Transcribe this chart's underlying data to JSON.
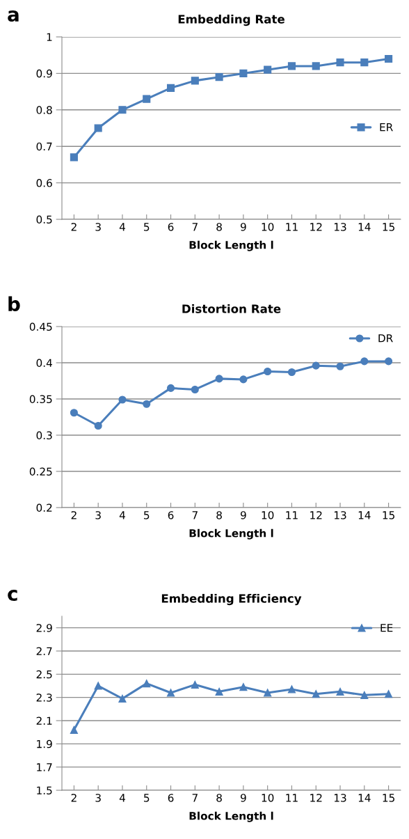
{
  "chart_data": [
    {
      "type": "line",
      "title": "Embedding Rate",
      "xlabel": "Block Length l",
      "annotations": [
        "a"
      ],
      "categories": [
        "2",
        "3",
        "4",
        "5",
        "6",
        "7",
        "8",
        "9",
        "10",
        "11",
        "12",
        "13",
        "14",
        "15"
      ],
      "series": [
        {
          "name": "ER",
          "color": "#4a7ebb",
          "values": [
            0.67,
            0.75,
            0.8,
            0.83,
            0.86,
            0.88,
            0.89,
            0.9,
            0.91,
            0.92,
            0.92,
            0.93,
            0.93,
            0.94
          ]
        }
      ],
      "ylim": [
        0.5,
        1
      ],
      "yticks": [
        0.5,
        0.6,
        0.7,
        0.8,
        0.9,
        1
      ],
      "grid": "y",
      "legend": "right",
      "marker": "square",
      "line_style": "solid"
    },
    {
      "type": "line",
      "title": "Distortion Rate",
      "xlabel": "Block Length l",
      "annotations": [
        "b"
      ],
      "categories": [
        "2",
        "3",
        "4",
        "5",
        "6",
        "7",
        "8",
        "9",
        "10",
        "11",
        "12",
        "13",
        "14",
        "15"
      ],
      "series": [
        {
          "name": "DR",
          "color": "#4a7ebb",
          "values": [
            0.331,
            0.313,
            0.349,
            0.343,
            0.365,
            0.363,
            0.378,
            0.377,
            0.388,
            0.387,
            0.396,
            0.395,
            0.402,
            0.402
          ]
        }
      ],
      "ylim": [
        0.2,
        0.45
      ],
      "yticks": [
        0.2,
        0.25,
        0.3,
        0.35,
        0.4,
        0.45
      ],
      "grid": "y",
      "legend": "top right",
      "marker": "circle",
      "line_style": "solid"
    },
    {
      "type": "line",
      "title": "Embedding Efficiency",
      "xlabel": "Block Length l",
      "annotations": [
        "c"
      ],
      "categories": [
        "2",
        "3",
        "4",
        "5",
        "6",
        "7",
        "8",
        "9",
        "10",
        "11",
        "12",
        "13",
        "14",
        "15"
      ],
      "series": [
        {
          "name": "EE",
          "color": "#4a7ebb",
          "values": [
            2.02,
            2.4,
            2.29,
            2.42,
            2.34,
            2.41,
            2.35,
            2.39,
            2.34,
            2.37,
            2.33,
            2.35,
            2.32,
            2.33
          ]
        }
      ],
      "ylim": [
        1.5,
        3.0
      ],
      "yticks": [
        1.5,
        1.7,
        1.9,
        2.1,
        2.3,
        2.5,
        2.7,
        2.9
      ],
      "grid": "y",
      "legend": "top right",
      "marker": "triangle",
      "line_style": "solid"
    }
  ]
}
